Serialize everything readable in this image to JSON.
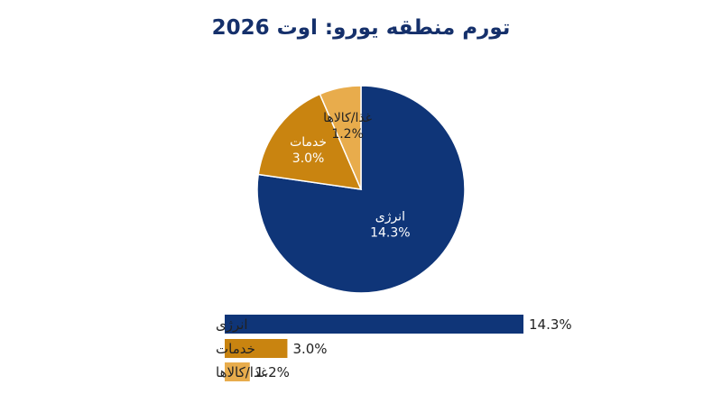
{
  "colors": {
    "title": "#15306b",
    "energy": "#0f3578",
    "services": "#c98410",
    "food": "#e8ac4c",
    "text": "#222222"
  },
  "chart_data": {
    "type": "pie",
    "title": "تورم منطقه یورو: اوت 2026",
    "categories": [
      "انرژی",
      "خدمات",
      "غذا/کالاها"
    ],
    "values": [
      14.3,
      3.0,
      1.2
    ],
    "value_labels": [
      "14.3%",
      "3.0%",
      "1.2%"
    ],
    "secondary_view": "horizontal-bar",
    "legend": "none"
  }
}
